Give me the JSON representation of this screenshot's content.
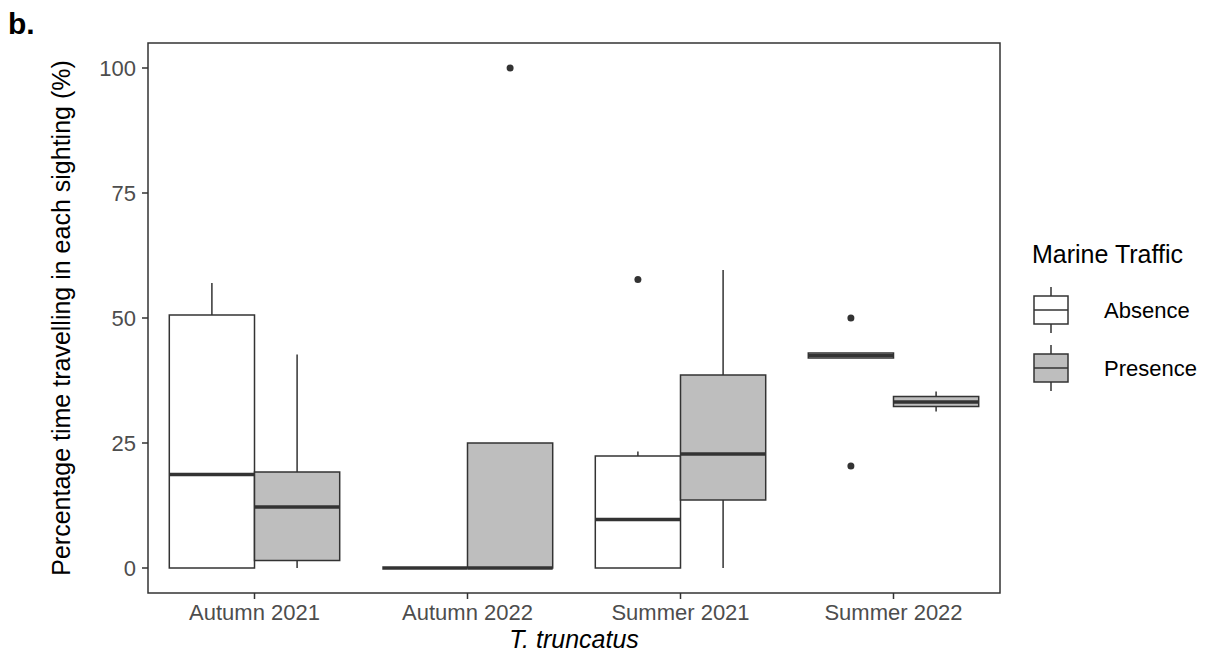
{
  "chart_data": {
    "type": "box",
    "title": "b.",
    "x_label": "T. truncatus",
    "y_label": "Percentage time travelling in each sighting (%)",
    "categories": [
      "Autumn 2021",
      "Autumn 2022",
      "Summer 2021",
      "Summer 2022"
    ],
    "legend_title": "Marine Traffic",
    "series": [
      {
        "name": "Absence",
        "color": "#ffffff",
        "min": [
          0,
          0,
          0,
          42
        ],
        "q1": [
          0,
          0,
          0,
          42
        ],
        "median": [
          18.7,
          0,
          9.7,
          42.5
        ],
        "q3": [
          50.6,
          0,
          22.4,
          43
        ],
        "max": [
          57,
          0,
          23.3,
          43
        ],
        "outliers": [
          [],
          [],
          [
            57.7
          ],
          [
            20.4,
            50
          ]
        ]
      },
      {
        "name": "Presence",
        "color": "#bebebe",
        "min": [
          0,
          0,
          0,
          31.3
        ],
        "q1": [
          1.5,
          0,
          13.6,
          32.3
        ],
        "median": [
          12.2,
          0,
          22.8,
          33.2
        ],
        "q3": [
          19.2,
          25,
          38.6,
          34.3
        ],
        "max": [
          42.7,
          25,
          59.6,
          35.3
        ],
        "outliers": [
          [],
          [
            100
          ],
          [],
          []
        ]
      }
    ],
    "ylim": [
      -5,
      105
    ],
    "yticks": [
      0,
      25,
      50,
      75,
      100
    ],
    "grid": false,
    "legend": "right"
  }
}
